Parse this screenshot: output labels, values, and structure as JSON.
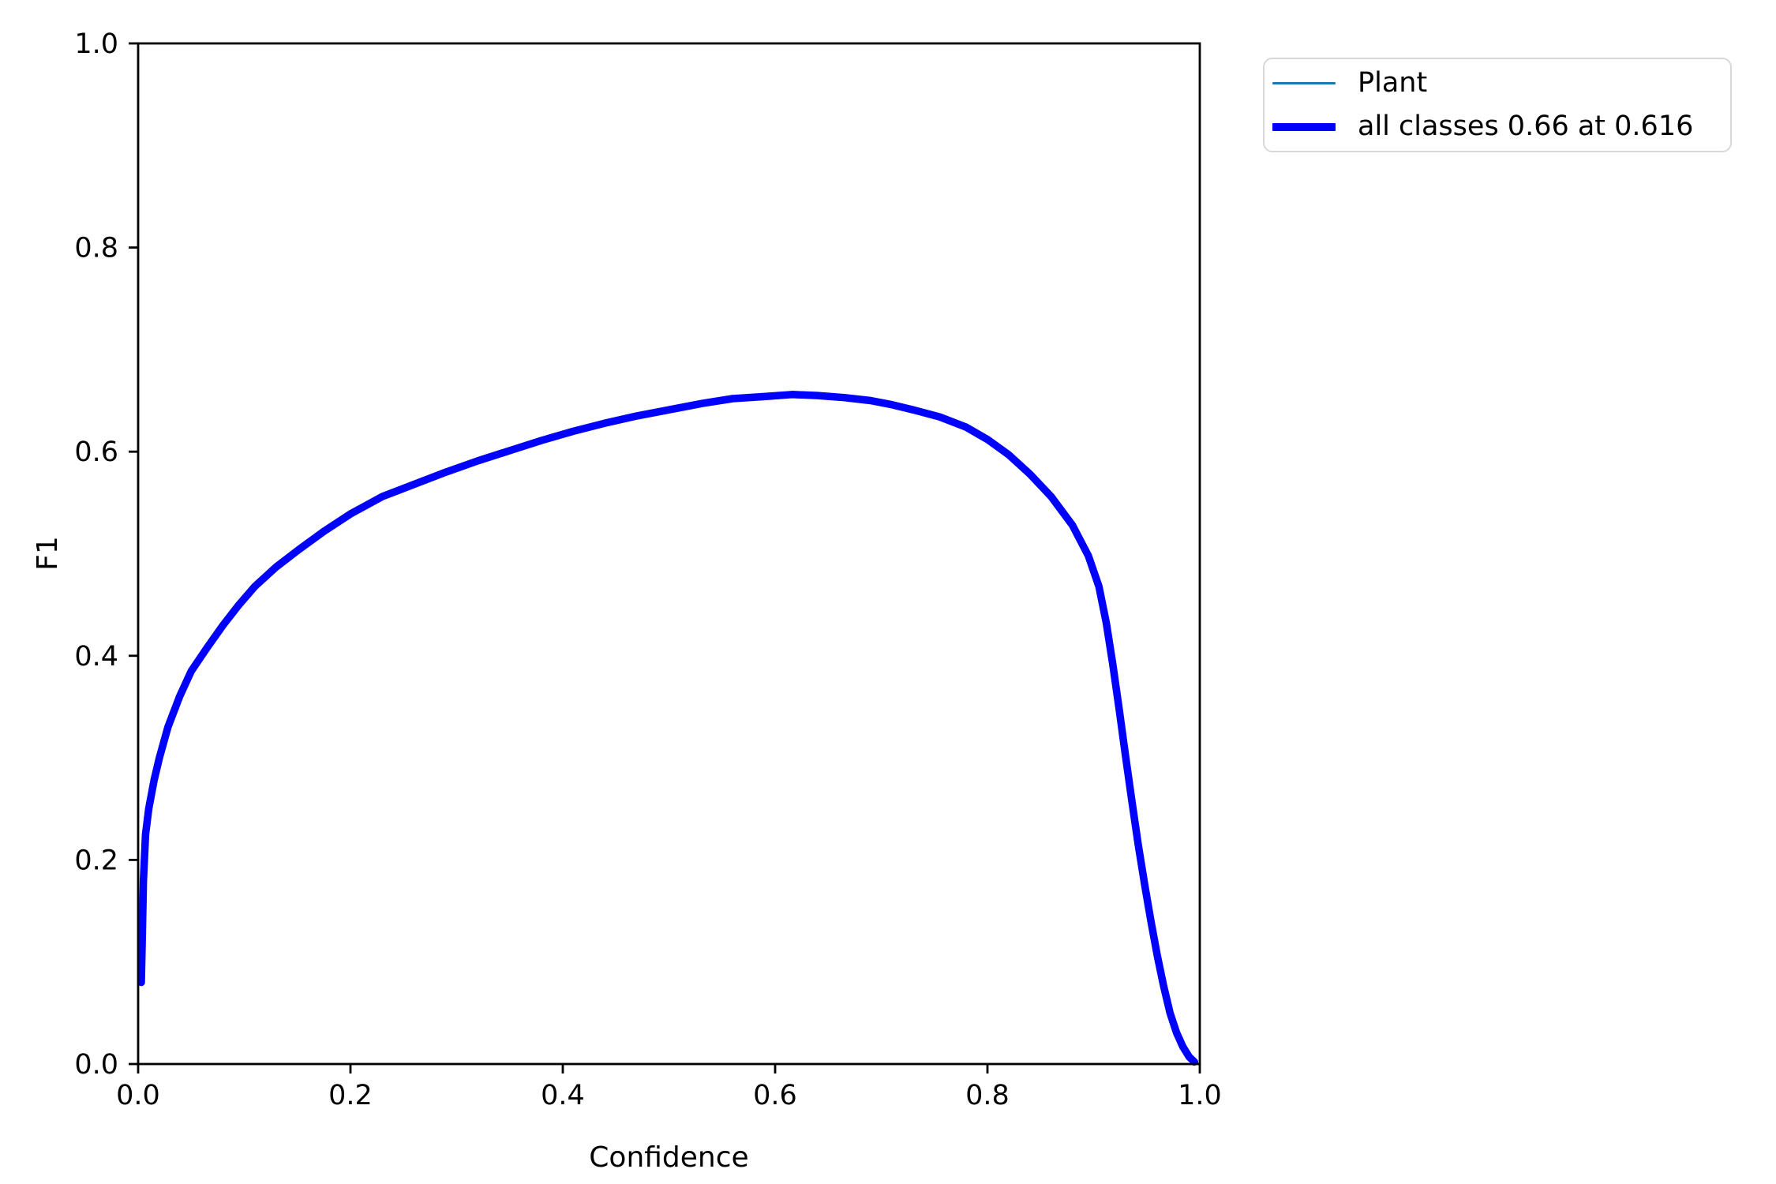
{
  "figure": {
    "background": "#ffffff",
    "plot_background": "#ffffff",
    "spine_color": "#000000"
  },
  "legend": {
    "entries": [
      {
        "label": "Plant",
        "color": "#1f77b4",
        "line_thickness": 3
      },
      {
        "label": "all classes 0.66 at 0.616",
        "color": "#0000ff",
        "line_thickness": 10
      }
    ]
  },
  "chart_data": {
    "type": "line",
    "title": "",
    "xlabel": "Confidence",
    "ylabel": "F1",
    "xlim": [
      0.0,
      1.0
    ],
    "ylim": [
      0.0,
      1.0
    ],
    "grid": false,
    "legend_position": "outside upper right",
    "xticks": {
      "values": [
        0.0,
        0.2,
        0.4,
        0.6,
        0.8,
        1.0
      ],
      "labels": [
        "0.0",
        "0.2",
        "0.4",
        "0.6",
        "0.8",
        "1.0"
      ]
    },
    "yticks": {
      "values": [
        0.0,
        0.2,
        0.4,
        0.6,
        0.8,
        1.0
      ],
      "labels": [
        "0.0",
        "0.2",
        "0.4",
        "0.6",
        "0.8",
        "1.0"
      ]
    },
    "peak": {
      "f1": 0.66,
      "confidence": 0.616
    },
    "series": [
      {
        "name": "Plant",
        "color": "#1f77b4",
        "linewidth": 3,
        "x": [
          0.003,
          0.004,
          0.005,
          0.007,
          0.01,
          0.015,
          0.02,
          0.028,
          0.039,
          0.05,
          0.065,
          0.08,
          0.095,
          0.11,
          0.13,
          0.15,
          0.175,
          0.2,
          0.23,
          0.26,
          0.29,
          0.32,
          0.35,
          0.38,
          0.41,
          0.44,
          0.47,
          0.5,
          0.53,
          0.56,
          0.59,
          0.616,
          0.64,
          0.665,
          0.69,
          0.71,
          0.73,
          0.755,
          0.78,
          0.8,
          0.82,
          0.84,
          0.86,
          0.88,
          0.895,
          0.905,
          0.912,
          0.918,
          0.924,
          0.93,
          0.936,
          0.942,
          0.948,
          0.954,
          0.96,
          0.966,
          0.972,
          0.978,
          0.984,
          0.99,
          0.995
        ],
        "y": [
          0.08,
          0.13,
          0.18,
          0.225,
          0.25,
          0.278,
          0.3,
          0.33,
          0.36,
          0.385,
          0.408,
          0.43,
          0.45,
          0.468,
          0.487,
          0.503,
          0.522,
          0.539,
          0.556,
          0.568,
          0.58,
          0.591,
          0.601,
          0.611,
          0.62,
          0.628,
          0.635,
          0.641,
          0.647,
          0.652,
          0.654,
          0.656,
          0.655,
          0.653,
          0.65,
          0.646,
          0.641,
          0.634,
          0.624,
          0.612,
          0.597,
          0.578,
          0.556,
          0.528,
          0.498,
          0.468,
          0.432,
          0.392,
          0.348,
          0.302,
          0.258,
          0.215,
          0.176,
          0.14,
          0.106,
          0.076,
          0.05,
          0.031,
          0.017,
          0.007,
          0.002
        ]
      },
      {
        "name": "all classes 0.66 at 0.616",
        "color": "#0000ff",
        "linewidth": 9.5,
        "x": [
          0.003,
          0.004,
          0.005,
          0.007,
          0.01,
          0.015,
          0.02,
          0.028,
          0.039,
          0.05,
          0.065,
          0.08,
          0.095,
          0.11,
          0.13,
          0.15,
          0.175,
          0.2,
          0.23,
          0.26,
          0.29,
          0.32,
          0.35,
          0.38,
          0.41,
          0.44,
          0.47,
          0.5,
          0.53,
          0.56,
          0.59,
          0.616,
          0.64,
          0.665,
          0.69,
          0.71,
          0.73,
          0.755,
          0.78,
          0.8,
          0.82,
          0.84,
          0.86,
          0.88,
          0.895,
          0.905,
          0.912,
          0.918,
          0.924,
          0.93,
          0.936,
          0.942,
          0.948,
          0.954,
          0.96,
          0.966,
          0.972,
          0.978,
          0.984,
          0.99,
          0.995
        ],
        "y": [
          0.08,
          0.13,
          0.18,
          0.225,
          0.25,
          0.278,
          0.3,
          0.33,
          0.36,
          0.385,
          0.408,
          0.43,
          0.45,
          0.468,
          0.487,
          0.503,
          0.522,
          0.539,
          0.556,
          0.568,
          0.58,
          0.591,
          0.601,
          0.611,
          0.62,
          0.628,
          0.635,
          0.641,
          0.647,
          0.652,
          0.654,
          0.656,
          0.655,
          0.653,
          0.65,
          0.646,
          0.641,
          0.634,
          0.624,
          0.612,
          0.597,
          0.578,
          0.556,
          0.528,
          0.498,
          0.468,
          0.432,
          0.392,
          0.348,
          0.302,
          0.258,
          0.215,
          0.176,
          0.14,
          0.106,
          0.076,
          0.05,
          0.031,
          0.017,
          0.007,
          0.002
        ]
      }
    ]
  }
}
